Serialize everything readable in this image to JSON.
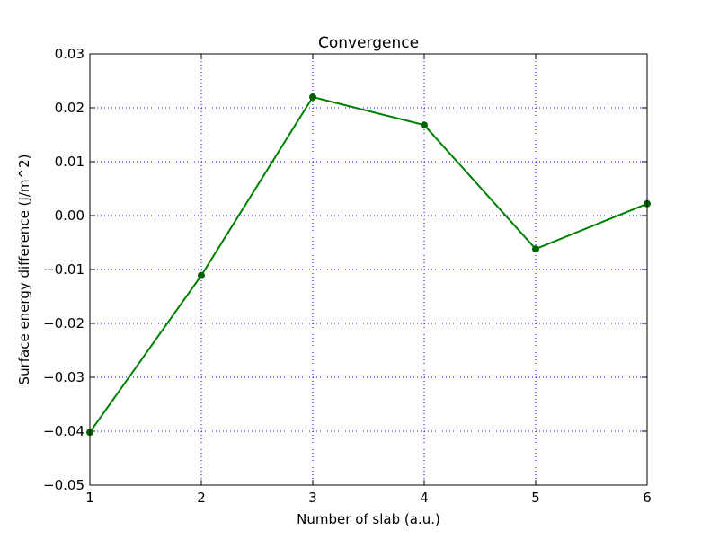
{
  "chart_data": {
    "type": "line",
    "title": "Convergence",
    "xlabel": "Number of slab (a.u.)",
    "ylabel": "Surface energy difference (J/m^2)",
    "xlim": [
      1,
      6
    ],
    "ylim": [
      -0.05,
      0.03
    ],
    "xticks": [
      1,
      2,
      3,
      4,
      5,
      6
    ],
    "xtick_labels": [
      "1",
      "2",
      "3",
      "4",
      "5",
      "6"
    ],
    "yticks": [
      -0.05,
      -0.04,
      -0.03,
      -0.02,
      -0.01,
      0.0,
      0.01,
      0.02,
      0.03
    ],
    "ytick_labels": [
      "−0.05",
      "−0.04",
      "−0.03",
      "−0.02",
      "−0.01",
      "0.00",
      "0.01",
      "0.02",
      "0.03"
    ],
    "grid": true,
    "series": [
      {
        "x": [
          1,
          2,
          3,
          4,
          5,
          6
        ],
        "y": [
          -0.0402,
          -0.0111,
          0.022,
          0.0168,
          -0.0062,
          0.0022
        ],
        "color": "#008000",
        "marker_color": "#006400"
      }
    ]
  }
}
